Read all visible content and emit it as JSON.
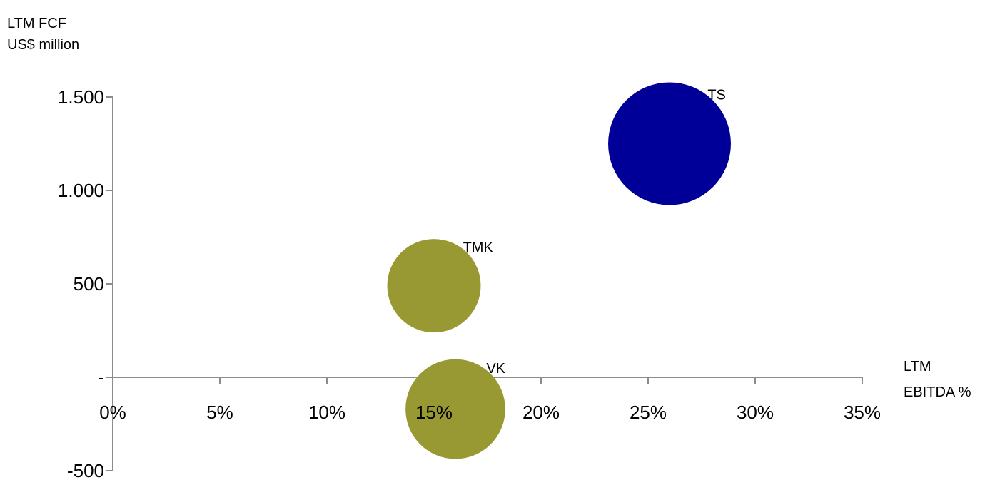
{
  "chart_data": {
    "type": "bubble",
    "title": "",
    "ylabel_lines": [
      "LTM FCF",
      "US$ million"
    ],
    "xlabel_lines": [
      "LTM",
      "EBITDA %"
    ],
    "x_ticks": [
      "0%",
      "5%",
      "10%",
      "15%",
      "20%",
      "25%",
      "30%",
      "35%"
    ],
    "x_tick_values": [
      0,
      5,
      10,
      15,
      20,
      25,
      30,
      35
    ],
    "y_ticks": [
      "-500",
      "-",
      "500",
      "1.000",
      "1.500"
    ],
    "y_tick_values": [
      -500,
      0,
      500,
      1000,
      1500
    ],
    "xlim": [
      0,
      35
    ],
    "ylim": [
      -500,
      1500
    ],
    "grid": false,
    "legend": false,
    "series": [
      {
        "name": "TS",
        "x": 26,
        "y": 1250,
        "size": 100,
        "color": "#000099"
      },
      {
        "name": "TMK",
        "x": 15,
        "y": 490,
        "size": 58,
        "color": "#999933"
      },
      {
        "name": "VK",
        "x": 16,
        "y": -170,
        "size": 66,
        "color": "#999933"
      }
    ]
  }
}
